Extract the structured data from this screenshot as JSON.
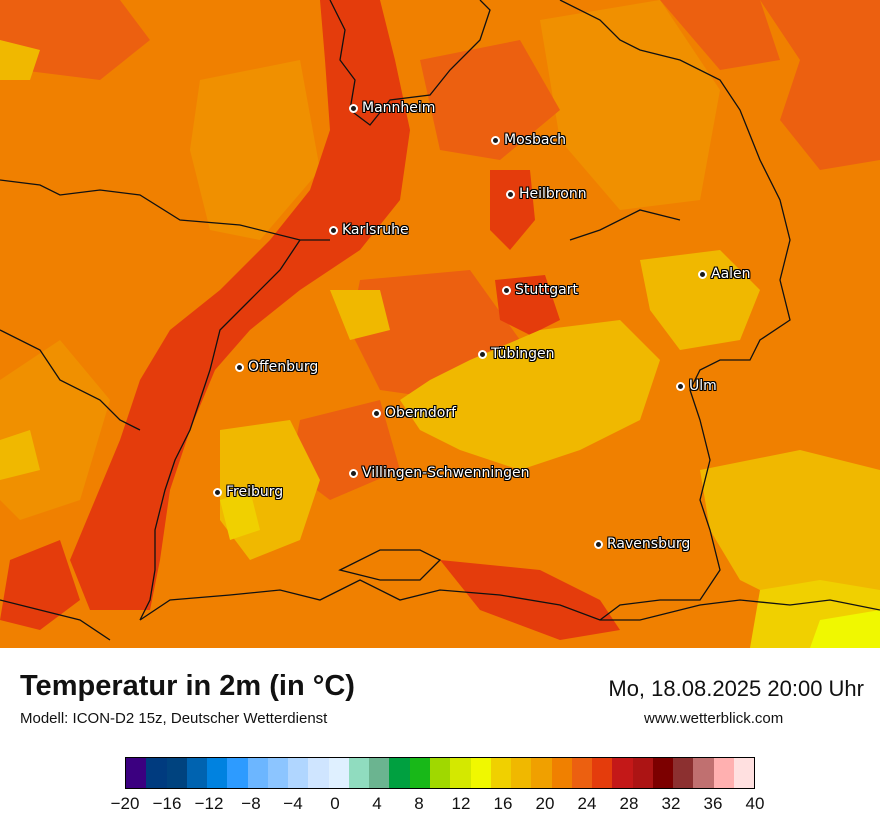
{
  "map": {
    "cities": [
      {
        "name": "Mannheim"
      },
      {
        "name": "Mosbach"
      },
      {
        "name": "Heilbronn"
      },
      {
        "name": "Karlsruhe"
      },
      {
        "name": "Aalen"
      },
      {
        "name": "Stuttgart"
      },
      {
        "name": "Tübingen"
      },
      {
        "name": "Offenburg"
      },
      {
        "name": "Ulm"
      },
      {
        "name": "Oberndorf"
      },
      {
        "name": "Villingen-Schwenningen"
      },
      {
        "name": "Freiburg"
      },
      {
        "name": "Ravensburg"
      }
    ]
  },
  "header": {
    "title": "Temperatur in 2m (in °C)",
    "model": "Modell: ICON-D2 15z, Deutscher Wetterdienst",
    "datetime": "Mo, 18.08.2025 20:00 Uhr",
    "website": "www.wetterblick.com"
  },
  "legend": {
    "colors": [
      "#3b0080",
      "#003b7f",
      "#00437f",
      "#0063b0",
      "#0082e0",
      "#2d9bff",
      "#6cb6ff",
      "#8cc5ff",
      "#b0d6ff",
      "#cfe5ff",
      "#dff0ff",
      "#90dcbf",
      "#6bb490",
      "#00a040",
      "#18b818",
      "#a0d800",
      "#d4e800",
      "#f0f800",
      "#f0d000",
      "#f0b800",
      "#f0a000",
      "#f08000",
      "#ec6010",
      "#e43c0c",
      "#c41818",
      "#ac1414",
      "#7c0000",
      "#8c3030",
      "#c07070",
      "#ffb0b0",
      "#ffe0e0"
    ],
    "ticks": [
      "−20",
      "−16",
      "−12",
      "−8",
      "−4",
      "0",
      "4",
      "8",
      "12",
      "16",
      "20",
      "24",
      "28",
      "32",
      "36",
      "40"
    ]
  }
}
